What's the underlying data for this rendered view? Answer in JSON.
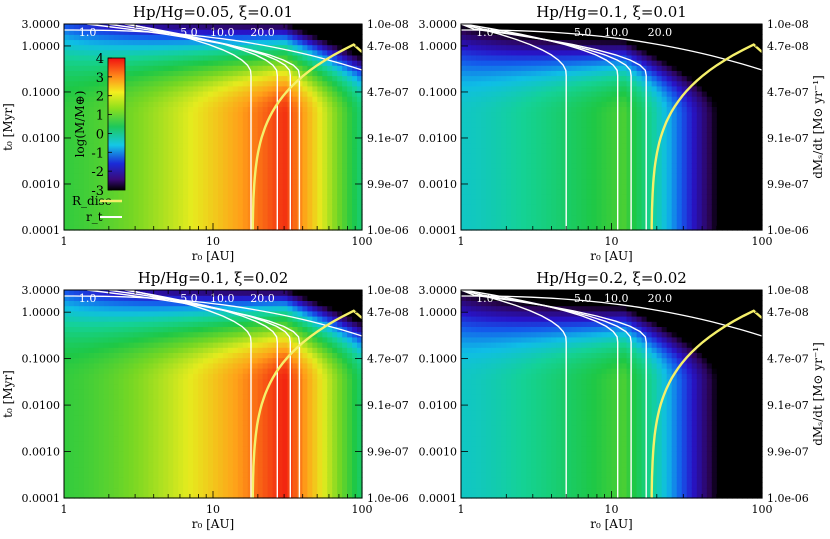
{
  "figure": {
    "ylabel_left": "t₀ [Myr]",
    "ylabel_right": "dMₛ/dt [M⊙ yr⁻¹]",
    "xlabel": "r₀ [AU]",
    "colorbar_label": "log(M/M⊕)",
    "legend": {
      "r_disc": "R_disc",
      "r_t": "r_t"
    }
  },
  "chart_data": [
    {
      "type": "heatmap",
      "title": "Hp/Hg=0.05, ξ=0.01",
      "xlabel": "r₀ [AU]",
      "ylabel": "t₀ [Myr]",
      "ylabel_right": "dMₛ/dt [M⊙ yr⁻¹]",
      "xscale": "log",
      "yscale": "log",
      "xlim": [
        1,
        100
      ],
      "ylim": [
        0.0001,
        3.0
      ],
      "x_ticks": [
        "1",
        "10",
        "100"
      ],
      "y_ticks": [
        "0.0001",
        "0.0010",
        "0.0100",
        "0.1000",
        "1.0000",
        "3.0000"
      ],
      "y_right_ticks": [
        "1.0e-06",
        "9.9e-07",
        "9.1e-07",
        "4.7e-07",
        "4.7e-08",
        "1.0e-08"
      ],
      "contour_levels": [
        "1.0",
        "5.0",
        "10.0",
        "20.0"
      ],
      "colorbar": {
        "range": [
          -3,
          4
        ],
        "ticks": [
          "-3",
          "-2",
          "-1",
          "0",
          "1",
          "2",
          "3",
          "4"
        ]
      },
      "legend": [
        "R_disc",
        "r_t"
      ],
      "peak_log_mass": 3.8,
      "peak_r0": 30
    },
    {
      "type": "heatmap",
      "title": "Hp/Hg=0.1, ξ=0.01",
      "xlabel": "r₀ [AU]",
      "ylabel": "t₀ [Myr]",
      "ylabel_right": "dMₛ/dt [M⊙ yr⁻¹]",
      "xscale": "log",
      "yscale": "log",
      "xlim": [
        1,
        100
      ],
      "ylim": [
        0.0001,
        3.0
      ],
      "x_ticks": [
        "1",
        "10",
        "100"
      ],
      "y_ticks": [
        "0.0001",
        "0.0010",
        "0.0100",
        "0.1000",
        "1.0000",
        "3.0000"
      ],
      "y_right_ticks": [
        "1.0e-06",
        "9.9e-07",
        "9.1e-07",
        "4.7e-07",
        "4.7e-08",
        "1.0e-08"
      ],
      "contour_levels": [
        "1.0",
        "5.0",
        "10.0",
        "20.0"
      ],
      "peak_log_mass": 1.0,
      "peak_r0": 12
    },
    {
      "type": "heatmap",
      "title": "Hp/Hg=0.1, ξ=0.02",
      "xlabel": "r₀ [AU]",
      "ylabel": "t₀ [Myr]",
      "ylabel_right": "dMₛ/dt [M⊙ yr⁻¹]",
      "xscale": "log",
      "yscale": "log",
      "xlim": [
        1,
        100
      ],
      "ylim": [
        0.0001,
        3.0
      ],
      "x_ticks": [
        "1",
        "10",
        "100"
      ],
      "y_ticks": [
        "0.0001",
        "0.0010",
        "0.0100",
        "0.1000",
        "1.0000",
        "3.0000"
      ],
      "y_right_ticks": [
        "1.0e-06",
        "9.9e-07",
        "9.1e-07",
        "4.7e-07",
        "4.7e-08",
        "1.0e-08"
      ],
      "contour_levels": [
        "1.0",
        "5.0",
        "10.0",
        "20.0"
      ],
      "peak_log_mass": 3.9,
      "peak_r0": 30
    },
    {
      "type": "heatmap",
      "title": "Hp/Hg=0.2, ξ=0.02",
      "xlabel": "r₀ [AU]",
      "ylabel": "t₀ [Myr]",
      "ylabel_right": "dMₛ/dt [M⊙ yr⁻¹]",
      "xscale": "log",
      "yscale": "log",
      "xlim": [
        1,
        100
      ],
      "ylim": [
        0.0001,
        3.0
      ],
      "x_ticks": [
        "1",
        "10",
        "100"
      ],
      "y_ticks": [
        "0.0001",
        "0.0010",
        "0.0100",
        "0.1000",
        "1.0000",
        "3.0000"
      ],
      "y_right_ticks": [
        "1.0e-06",
        "9.9e-07",
        "9.1e-07",
        "4.7e-07",
        "4.7e-08",
        "1.0e-08"
      ],
      "contour_levels": [
        "1.0",
        "5.0",
        "10.0",
        "20.0"
      ],
      "peak_log_mass": 1.0,
      "peak_r0": 12
    }
  ]
}
